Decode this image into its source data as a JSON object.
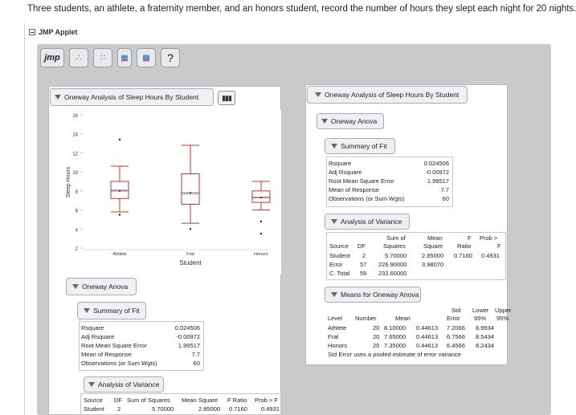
{
  "question": "Three students, an athlete, a fraternity member, and an honors student, record the number of hours they slept each night for 20 nights.",
  "applet_title": "JMP Applet",
  "toolbar": {
    "jmp_label": "jmp",
    "help_label": "?"
  },
  "left_chart": {
    "title": "Oneway Analysis of Sleep Hours By Student",
    "ylabel": "Sleep Hours",
    "xlabel": "Student",
    "y_ticks": [
      "16",
      "14",
      "12",
      "10",
      "8",
      "6",
      "4",
      "2"
    ],
    "categories": [
      "Athlete",
      "Frat",
      "Honors"
    ]
  },
  "chart_data": {
    "type": "box",
    "title": "Oneway Analysis of Sleep Hours By Student",
    "xlabel": "Student",
    "ylabel": "Sleep Hours",
    "ylim": [
      2,
      16
    ],
    "categories": [
      "Athlete",
      "Frat",
      "Honors"
    ],
    "boxes": [
      {
        "name": "Athlete",
        "min": 5.8,
        "q1": 7.2,
        "median": 8.0,
        "q3": 9.0,
        "max": 10.6,
        "mean": 8.1,
        "outliers": [
          13.4,
          5.5
        ]
      },
      {
        "name": "Frat",
        "min": 4.6,
        "q1": 6.6,
        "median": 7.8,
        "q3": 9.8,
        "max": 12.8,
        "mean": 7.65,
        "outliers": [
          4.0
        ]
      },
      {
        "name": "Honors",
        "min": 6.0,
        "q1": 6.8,
        "median": 7.3,
        "q3": 8.0,
        "max": 9.0,
        "mean": 7.35,
        "outliers": [
          4.8,
          3.5
        ]
      }
    ]
  },
  "left_anova": {
    "heading": "Oneway Anova",
    "fit_heading": "Summary of Fit",
    "fit_labels": [
      "Rsquare",
      "Adj Rsquare",
      "Root Mean Square Error",
      "Mean of Response",
      "Observations (or Sum Wgts)"
    ],
    "fit_values": [
      "0.024506",
      "-0.00972",
      "1.99517",
      "7.7",
      "60"
    ],
    "variance_heading": "Analysis of Variance",
    "variance_header": [
      "Source",
      "DF",
      "Sum of Squares",
      "Mean Square",
      "F Ratio",
      "Prob > F"
    ],
    "variance_rows": [
      [
        "Student",
        "2",
        "5.70000",
        "2.85000",
        "0.7160",
        "0.4931"
      ]
    ]
  },
  "right": {
    "title": "Oneway Analysis of Sleep Hours By Student",
    "anova_heading": "Oneway Anova",
    "fit_heading": "Summary of Fit",
    "fit_labels": [
      "Rsquare",
      "Adj Rsquare",
      "Root Mean Square Error",
      "Mean of Response",
      "Observations (or Sum Wgts)"
    ],
    "fit_values": [
      "0.024506",
      "-0.00972",
      "1.99517",
      "7.7",
      "60"
    ],
    "variance_heading": "Analysis of Variance",
    "variance_header_top": [
      "Sum of",
      "Mean",
      "F",
      "Prob >"
    ],
    "variance_header": [
      "Source",
      "DF",
      "Squares",
      "Square",
      "Ratio",
      "F"
    ],
    "variance_rows": [
      [
        "Student",
        "2",
        "5.70000",
        "2.85000",
        "0.7160",
        "0.4931"
      ],
      [
        "Error",
        "57",
        "226.90000",
        "3.98070",
        "",
        ""
      ],
      [
        "C. Total",
        "59",
        "232.60000",
        "",
        "",
        ""
      ]
    ],
    "means_heading": "Means for Oneway Anova",
    "means_header_top": [
      "Std",
      "Lower",
      "Upper"
    ],
    "means_header": [
      "Level",
      "Number",
      "Mean",
      "Error",
      "95%",
      "95%"
    ],
    "means_rows": [
      [
        "Athlete",
        "20",
        "8.10000",
        "0.44613",
        "7.2066",
        "8.9934"
      ],
      [
        "Frat",
        "20",
        "7.65000",
        "0.44613",
        "6.7566",
        "8.5434"
      ],
      [
        "Honors",
        "20",
        "7.35000",
        "0.44613",
        "6.4566",
        "8.2434"
      ]
    ],
    "means_note": "Std Error uses a pooled estimate of error variance"
  }
}
